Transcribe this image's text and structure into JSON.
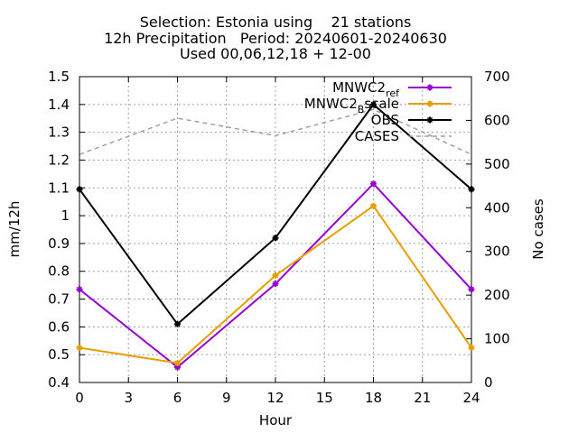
{
  "chart_data": {
    "type": "line",
    "title_lines": [
      "Selection: Estonia using    21 stations",
      "12h Precipitation   Period: 20240601-20240630",
      "Used 00,06,12,18 + 12-00"
    ],
    "xlabel": "Hour",
    "ylabel": "mm/12h",
    "y2label": "No cases",
    "xlim": [
      0,
      24
    ],
    "ylim": [
      0.4,
      1.5
    ],
    "y2lim": [
      0,
      700
    ],
    "xticks": [
      "0",
      "3",
      "6",
      "9",
      "12",
      "15",
      "18",
      "21",
      "24"
    ],
    "yticks": [
      "0.4",
      "0.5",
      "0.6",
      "0.7",
      "0.8",
      "0.9",
      "1",
      "1.1",
      "1.2",
      "1.3",
      "1.4",
      "1.5"
    ],
    "y2ticks": [
      "0",
      "100",
      "200",
      "300",
      "400",
      "500",
      "600",
      "700"
    ],
    "grid": true,
    "legend_position": "top-right",
    "x": [
      0,
      6,
      12,
      18,
      24
    ],
    "series": [
      {
        "name": "MNWC2_ref",
        "legend_main": "MNWC2",
        "legend_sub": "ref",
        "color": "#9400d3",
        "axis": "y",
        "values": [
          0.735,
          0.455,
          0.755,
          1.115,
          0.735
        ]
      },
      {
        "name": "MNWC2_Bscale",
        "legend_main": "MNWC2",
        "legend_sub": "B",
        "legend_tail": "scale",
        "color": "#e69f00",
        "axis": "y",
        "values": [
          0.525,
          0.47,
          0.785,
          1.035,
          0.525
        ]
      },
      {
        "name": "OBS",
        "color": "#000000",
        "axis": "y",
        "values": [
          1.095,
          0.61,
          0.92,
          1.4,
          1.095
        ]
      },
      {
        "name": "CASES",
        "color": "#a0a0a0",
        "axis": "y2",
        "dashed": true,
        "values": [
          522,
          605,
          565,
          625,
          522
        ]
      }
    ]
  }
}
